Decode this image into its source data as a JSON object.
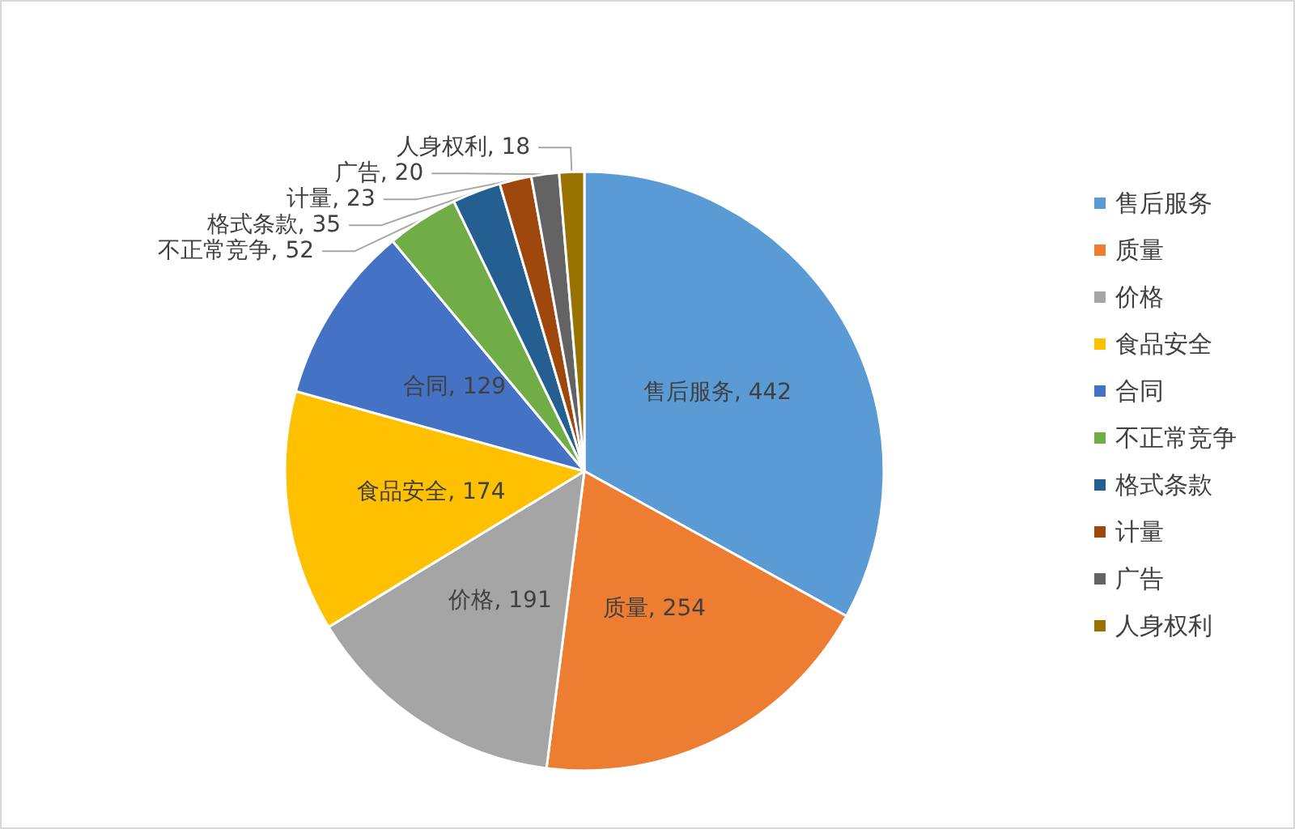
{
  "chart_data": {
    "type": "pie",
    "categories": [
      "售后服务",
      "质量",
      "价格",
      "食品安全",
      "合同",
      "不正常竞争",
      "格式条款",
      "计量",
      "广告",
      "人身权利"
    ],
    "values": [
      442,
      254,
      191,
      174,
      129,
      52,
      35,
      23,
      20,
      18
    ],
    "colors": [
      "#5b9bd5",
      "#ed7d31",
      "#a5a5a5",
      "#ffc000",
      "#4472c4",
      "#70ad47",
      "#255e91",
      "#9e480e",
      "#636363",
      "#997300"
    ],
    "value_labels": [
      "售后服务, 442",
      "质量, 254",
      "价格, 191",
      "食品安全, 174",
      "合同, 129",
      "不正常竞争, 52",
      "格式条款, 35",
      "计量, 23",
      "广告, 20",
      "人身权利, 18"
    ],
    "legend": "right"
  }
}
